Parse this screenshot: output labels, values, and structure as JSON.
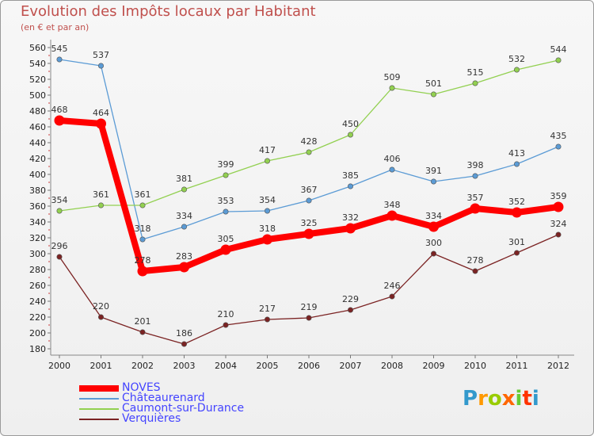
{
  "header": {
    "title": "Evolution des Impôts locaux par Habitant",
    "subtitle": "(en € et par an)"
  },
  "chart_data": {
    "type": "line",
    "title": "Evolution des Impôts locaux par Habitant",
    "subtitle": "(en € et par an)",
    "xlabel": "",
    "ylabel": "",
    "ylim": [
      180,
      560
    ],
    "y_ticks": [
      180,
      200,
      220,
      240,
      260,
      280,
      300,
      320,
      340,
      360,
      380,
      400,
      420,
      440,
      460,
      480,
      500,
      520,
      540,
      560
    ],
    "categories": [
      "2000",
      "2001",
      "2002",
      "2003",
      "2004",
      "2005",
      "2006",
      "2007",
      "2008",
      "2009",
      "2010",
      "2011",
      "2012"
    ],
    "grid": false,
    "legend_position": "bottom-left",
    "series": [
      {
        "name": "NOVES",
        "color": "#ff0000",
        "values": [
          468,
          464,
          278,
          283,
          305,
          318,
          325,
          332,
          348,
          334,
          357,
          352,
          359
        ]
      },
      {
        "name": "Châteaurenard",
        "color": "#5b9bd5",
        "values": [
          545,
          537,
          318,
          334,
          353,
          354,
          367,
          385,
          406,
          391,
          398,
          413,
          435
        ]
      },
      {
        "name": "Caumont-sur-Durance",
        "color": "#92d050",
        "values": [
          354,
          361,
          361,
          381,
          399,
          417,
          428,
          450,
          509,
          501,
          515,
          532,
          544
        ]
      },
      {
        "name": "Verquières",
        "color": "#7b2323",
        "values": [
          296,
          220,
          201,
          186,
          210,
          217,
          219,
          229,
          246,
          300,
          278,
          301,
          324
        ]
      }
    ]
  },
  "legend": {
    "text_color": "#4444ff",
    "items": [
      "NOVES",
      "Châteaurenard",
      "Caumont-sur-Durance",
      "Verquières"
    ]
  },
  "logo": {
    "letters": [
      "P",
      "r",
      "o",
      "x",
      "i",
      "t",
      "i"
    ],
    "colors": [
      "#3399cc",
      "#ff9900",
      "#99cc00",
      "#ff6600",
      "#66cc33",
      "#ff3300",
      "#3399cc"
    ]
  }
}
